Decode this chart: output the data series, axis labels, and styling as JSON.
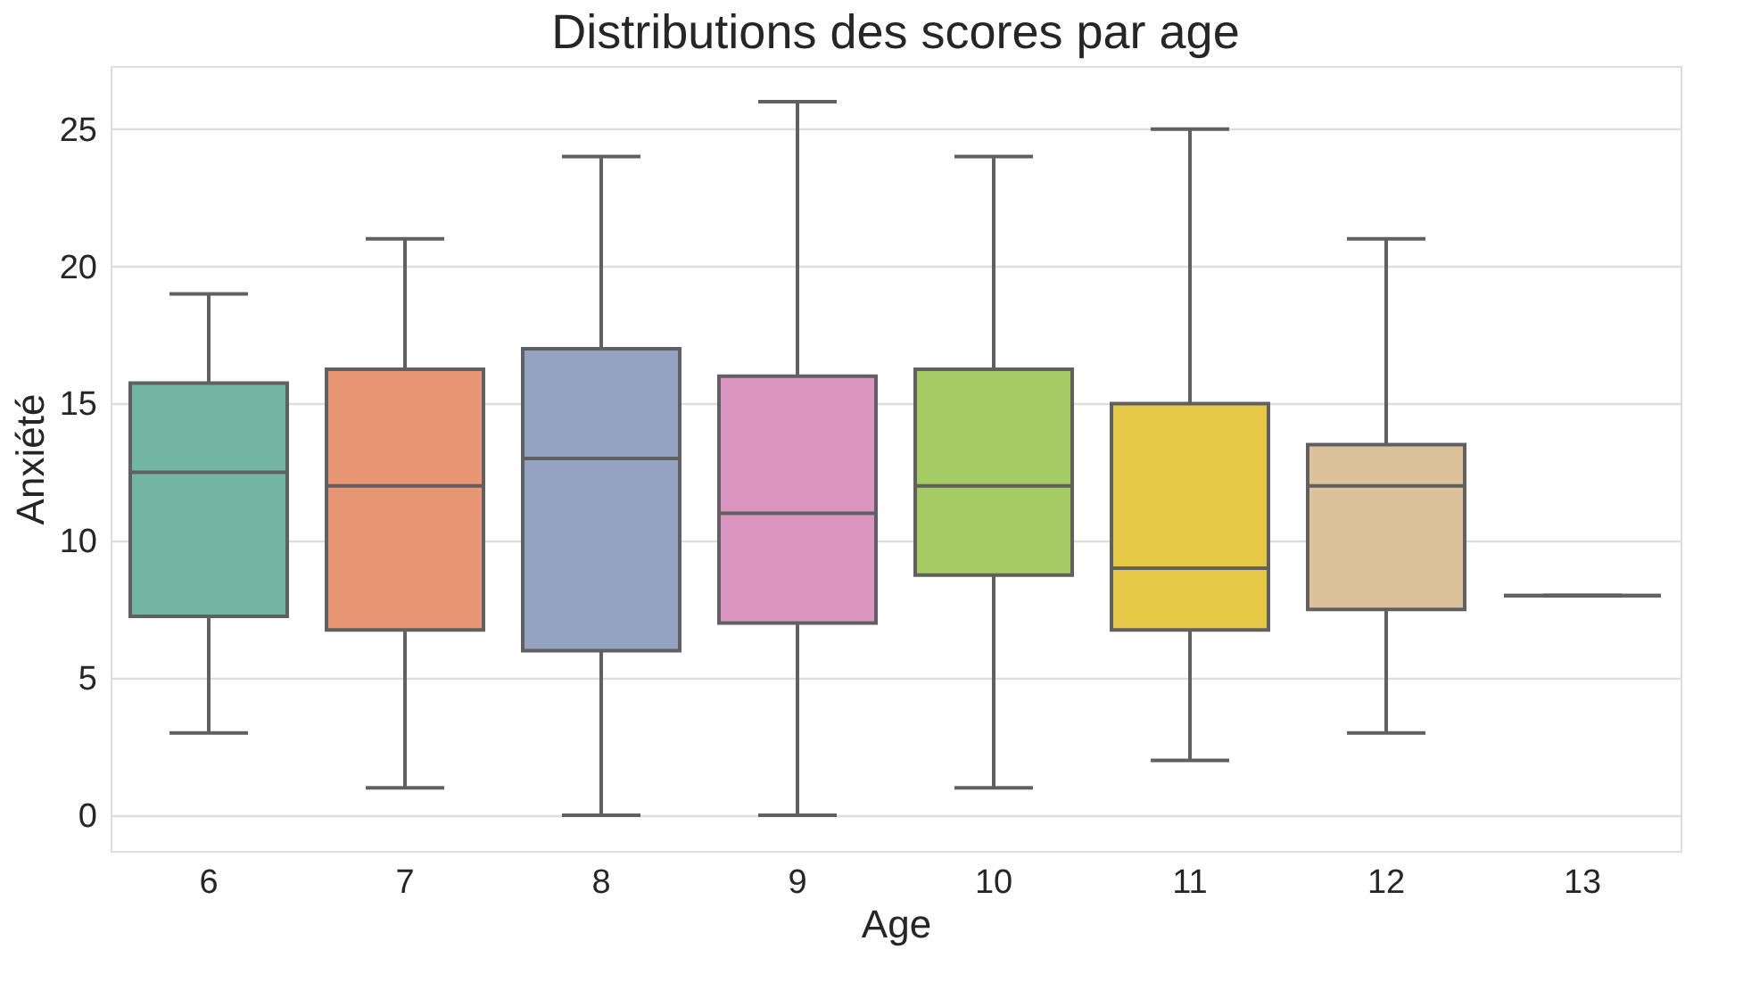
{
  "chart_data": {
    "type": "box",
    "title": "Distributions des scores par age",
    "xlabel": "Age",
    "ylabel": "Anxiété",
    "categories": [
      "6",
      "7",
      "8",
      "9",
      "10",
      "11",
      "12",
      "13"
    ],
    "boxes": [
      {
        "low": 3,
        "q1": 7.25,
        "median": 12.5,
        "q3": 15.75,
        "high": 19
      },
      {
        "low": 1,
        "q1": 6.75,
        "median": 12,
        "q3": 16.25,
        "high": 21
      },
      {
        "low": 0,
        "q1": 6,
        "median": 13,
        "q3": 17,
        "high": 24
      },
      {
        "low": 0,
        "q1": 7,
        "median": 11,
        "q3": 16,
        "high": 26
      },
      {
        "low": 1,
        "q1": 8.75,
        "median": 12,
        "q3": 16.25,
        "high": 24
      },
      {
        "low": 2,
        "q1": 6.75,
        "median": 9,
        "q3": 15,
        "high": 25
      },
      {
        "low": 3,
        "q1": 7.5,
        "median": 12,
        "q3": 13.5,
        "high": 21
      },
      {
        "low": 8,
        "q1": 8,
        "median": 8,
        "q3": 8,
        "high": 8
      }
    ],
    "colors": [
      "#72b6a1",
      "#e99675",
      "#95a3c3",
      "#db96c0",
      "#a4cb64",
      "#e5c845",
      "#dbc29b",
      "#606060"
    ],
    "ylim": [
      -1.3,
      27.3
    ],
    "yticks": [
      0,
      5,
      10,
      15,
      20,
      25
    ],
    "grid": "y"
  }
}
